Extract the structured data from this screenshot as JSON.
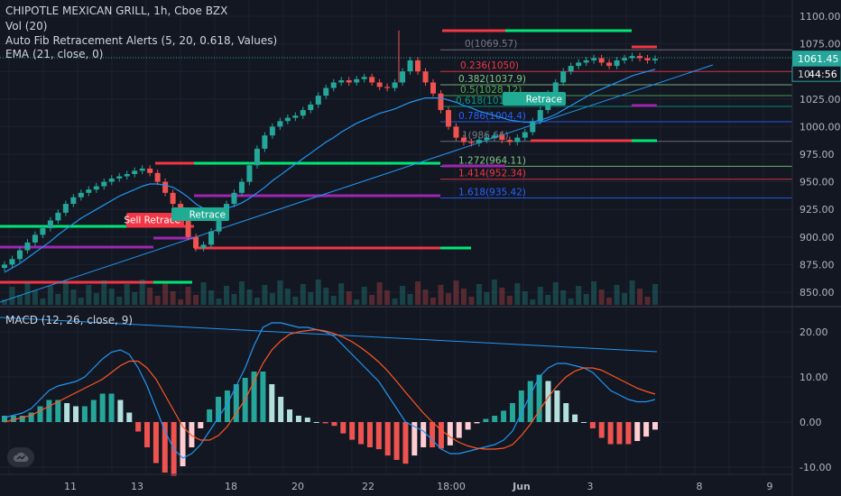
{
  "header": {
    "symbol_line": "CHIPOTLE MEXICAN GRILL, 1h, Cboe BZX",
    "indicators": [
      "Vol (20)",
      "Auto Fib Retracement Alerts (5, 20, 0.618, Values)",
      "EMA (21, close, 0)"
    ],
    "macd_label": "MACD (12, 26, close, 9)"
  },
  "price_axis": {
    "ticks": [
      "1100.00",
      "1075.00",
      "1050.00",
      "1025.00",
      "1000.00",
      "975.00",
      "950.00",
      "925.00",
      "900.00",
      "875.00",
      "850.00"
    ],
    "tick_values": [
      1100,
      1075,
      1050,
      1025,
      1000,
      975,
      950,
      925,
      900,
      875,
      850
    ],
    "last_price": "1061.45",
    "countdown_prefix": "10",
    "countdown": "44:56"
  },
  "macd_axis": {
    "ticks": [
      "20.00",
      "10.00",
      "0.00",
      "-10.00"
    ],
    "tick_values": [
      20,
      10,
      0,
      -10
    ]
  },
  "time_axis": {
    "labels": [
      "11",
      "13",
      "18",
      "20",
      "22",
      "18:00",
      "Jun",
      "3",
      "8",
      "9"
    ],
    "bold_label": "Jun"
  },
  "fib_levels": [
    {
      "label": "0(1069.57)",
      "value": 1069.57,
      "color": "#787b86"
    },
    {
      "label": "0.236(1050)",
      "value": 1050,
      "color": "#f23645"
    },
    {
      "label": "0.382(1037.9)",
      "value": 1037.9,
      "color": "#81c784"
    },
    {
      "label": "0.5(1028.12)",
      "value": 1028.12,
      "color": "#4caf50"
    },
    {
      "label": "0.618(1018.",
      "value": 1018.3,
      "color": "#089981"
    },
    {
      "label": "0.786(1004.4)",
      "value": 1004.4,
      "color": "#2962ff"
    },
    {
      "label": "1(986.66)",
      "value": 986.66,
      "color": "#787b86"
    },
    {
      "label": "1.272(964.11)",
      "value": 964.11,
      "color": "#81c784"
    },
    {
      "label": "1.414(952.34)",
      "value": 952.34,
      "color": "#f23645"
    },
    {
      "label": "1.618(935.42)",
      "value": 935.42,
      "color": "#2962ff"
    }
  ],
  "signals": [
    {
      "label": "Sell Retrace",
      "color": "#f23645"
    },
    {
      "label": "Retrace",
      "color": "#22ab94"
    },
    {
      "label": "Retrace",
      "color": "#22ab94"
    }
  ],
  "colors": {
    "background": "#131722",
    "up": "#26a69a",
    "down": "#ef5350",
    "ema": "#2196f3",
    "macd": "#2196f3",
    "signal": "#ff5722",
    "trend": "#2196f3"
  },
  "chart_data": {
    "type": "candlestick",
    "title": "CHIPOTLE MEXICAN GRILL, 1h, Cboe BZX",
    "ylim": [
      836,
      1112
    ],
    "close_series": [
      875,
      880,
      888,
      895,
      902,
      908,
      915,
      922,
      930,
      936,
      940,
      943,
      946,
      950,
      953,
      955,
      957,
      960,
      962,
      958,
      950,
      940,
      930,
      915,
      900,
      890,
      893,
      905,
      918,
      930,
      940,
      950,
      965,
      980,
      992,
      1000,
      1005,
      1008,
      1010,
      1015,
      1020,
      1028,
      1035,
      1040,
      1042,
      1040,
      1043,
      1045,
      1040,
      1036,
      1035,
      1040,
      1050,
      1060,
      1050,
      1040,
      1030,
      1015,
      1000,
      990,
      986,
      985,
      988,
      990,
      992,
      988,
      986,
      990,
      995,
      1005,
      1015,
      1030,
      1040,
      1050,
      1055,
      1058,
      1060,
      1062,
      1058,
      1055,
      1060,
      1062,
      1064,
      1062,
      1060,
      1061.45
    ],
    "ema_series": [
      868,
      872,
      876,
      881,
      886,
      891,
      896,
      902,
      907,
      912,
      917,
      921,
      925,
      929,
      933,
      937,
      940,
      943,
      946,
      948,
      948,
      947,
      945,
      941,
      936,
      930,
      926,
      925,
      925,
      926,
      928,
      931,
      935,
      940,
      945,
      951,
      956,
      961,
      966,
      971,
      976,
      981,
      986,
      990,
      995,
      999,
      1003,
      1006,
      1009,
      1012,
      1014,
      1016,
      1019,
      1022,
      1024,
      1026,
      1026,
      1026,
      1024,
      1022,
      1019,
      1017,
      1014,
      1012,
      1010,
      1008,
      1006,
      1005,
      1004,
      1004,
      1006,
      1008,
      1011,
      1015,
      1019,
      1023,
      1027,
      1031,
      1034,
      1037,
      1040,
      1043,
      1046,
      1048,
      1050,
      1052
    ],
    "macd_line": [
      1,
      1.5,
      2,
      3,
      5,
      7,
      8,
      8.5,
      9,
      10,
      12,
      14,
      15.5,
      16,
      15,
      12,
      8,
      3,
      -2,
      -6,
      -8,
      -7,
      -5,
      -2,
      1,
      4,
      8,
      12,
      17,
      21,
      22,
      22,
      21.5,
      21,
      21,
      20.5,
      20,
      19,
      17,
      15,
      13,
      11,
      9,
      6,
      3,
      0,
      -1,
      -2,
      -4,
      -6,
      -7,
      -7,
      -6.5,
      -6,
      -5.5,
      -5,
      -4,
      -2,
      2,
      6,
      10,
      12,
      13,
      13,
      12.5,
      12,
      11,
      9,
      7,
      6,
      5,
      4.5,
      4.5,
      5
    ],
    "signal_line": [
      0,
      0.5,
      1,
      1.5,
      2.5,
      3.5,
      4.5,
      5.5,
      6.5,
      7.5,
      8.5,
      9.5,
      11,
      12.5,
      13.5,
      13.5,
      12,
      9.5,
      6,
      2.5,
      -1,
      -3,
      -4,
      -4,
      -3,
      -1,
      2,
      5,
      9,
      13,
      16,
      18,
      19.5,
      20,
      20.3,
      20.5,
      20.2,
      19.6,
      18.8,
      17.8,
      16.5,
      15,
      13.3,
      11.3,
      9,
      6.6,
      4.3,
      2,
      0,
      -1.8,
      -3.3,
      -4.5,
      -5.3,
      -5.8,
      -6,
      -6,
      -5.8,
      -5,
      -3,
      -0.5,
      2.5,
      5.5,
      8,
      10,
      11.3,
      12,
      12,
      11.5,
      10.5,
      9.5,
      8.5,
      7.5,
      6.8,
      6.2
    ]
  }
}
